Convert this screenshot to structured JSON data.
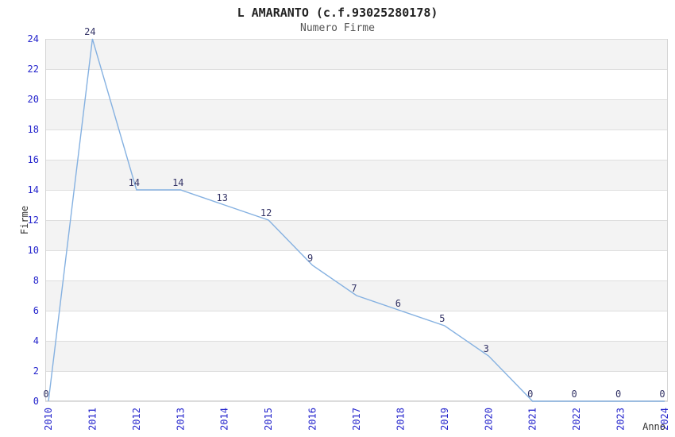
{
  "chart_data": {
    "type": "line",
    "title": "L AMARANTO (c.f.93025280178)",
    "subtitle": "Numero Firme",
    "xlabel": "Anno",
    "ylabel": "Firme",
    "categories": [
      "2010",
      "2011",
      "2012",
      "2013",
      "2014",
      "2015",
      "2016",
      "2017",
      "2018",
      "2019",
      "2020",
      "2021",
      "2022",
      "2023",
      "2024"
    ],
    "series": [
      {
        "name": "Numero Firme",
        "values": [
          0,
          24,
          14,
          14,
          13,
          12,
          9,
          7,
          6,
          5,
          3,
          0,
          0,
          0,
          0
        ]
      }
    ],
    "ylim": [
      0,
      24
    ],
    "ytick_step": 2,
    "yticks": [
      0,
      2,
      4,
      6,
      8,
      10,
      12,
      14,
      16,
      18,
      20,
      22,
      24
    ],
    "xtick_rotation": 90,
    "grid": "horizontal-bands",
    "legend": "none",
    "data_labels_visible": true,
    "colors": {
      "line": "#85b1e1",
      "tick_label": "#2323cc",
      "data_label": "#333366",
      "band": "#f3f3f3",
      "gridline": "#dedede",
      "plot_border": "#d4d4d4",
      "title_text": "#222222",
      "subtitle_text": "#555555",
      "axis_title_text": "#333333",
      "background": "#ffffff"
    }
  }
}
